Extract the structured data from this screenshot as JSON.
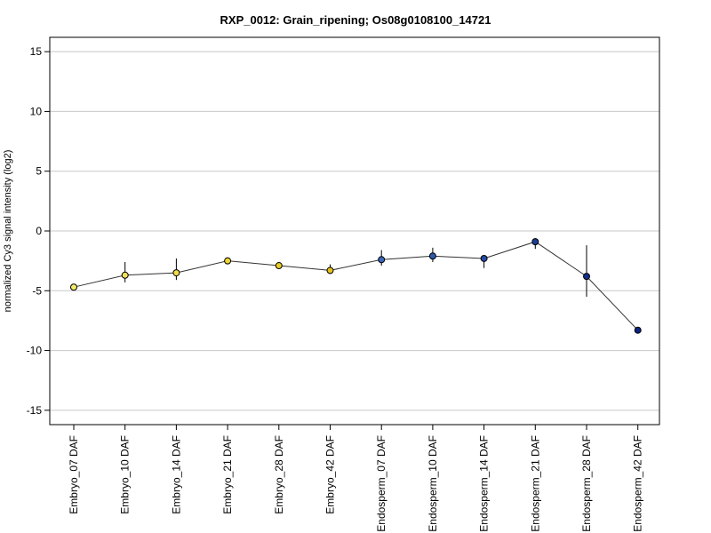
{
  "chart_data": {
    "type": "line",
    "title": "RXP_0012: Grain_ripening; Os08g0108100_14721",
    "xlabel": "",
    "ylabel": "normalized Cy3 signal intensity (log2)",
    "ylim": [
      -16.2,
      16.2
    ],
    "yticks": [
      -15,
      -10,
      -5,
      0,
      5,
      10,
      15
    ],
    "grid": true,
    "categories": [
      "Embryo_07 DAF",
      "Embryo_10 DAF",
      "Embryo_14 DAF",
      "Embryo_21 DAF",
      "Embryo_28 DAF",
      "Embryo_42 DAF",
      "Endosperm_07 DAF",
      "Endosperm_10 DAF",
      "Endosperm_14 DAF",
      "Endosperm_21 DAF",
      "Endosperm_28 DAF",
      "Endosperm_42 DAF"
    ],
    "values": [
      -4.7,
      -3.7,
      -3.5,
      -2.5,
      -2.9,
      -3.3,
      -2.4,
      -2.1,
      -2.3,
      -0.9,
      -3.8,
      -8.3
    ],
    "error_low": [
      -4.9,
      -4.3,
      -4.1,
      -2.6,
      -3.1,
      -3.6,
      -2.9,
      -2.6,
      -3.1,
      -1.5,
      -5.5,
      -8.4
    ],
    "error_high": [
      -4.5,
      -2.6,
      -2.3,
      -2.3,
      -2.6,
      -2.8,
      -1.6,
      -1.4,
      -2.1,
      -0.6,
      -1.2,
      -8.2
    ],
    "point_colors": [
      "#f5e96b",
      "#f2e25a",
      "#f0dc48",
      "#eed435",
      "#ebcc28",
      "#e6c31c",
      "#3a67b8",
      "#2f58ad",
      "#254aa2",
      "#1b3c97",
      "#132f8a",
      "#0c2480"
    ],
    "line_color": "#333333",
    "grid_color": "#c8c8c8"
  }
}
